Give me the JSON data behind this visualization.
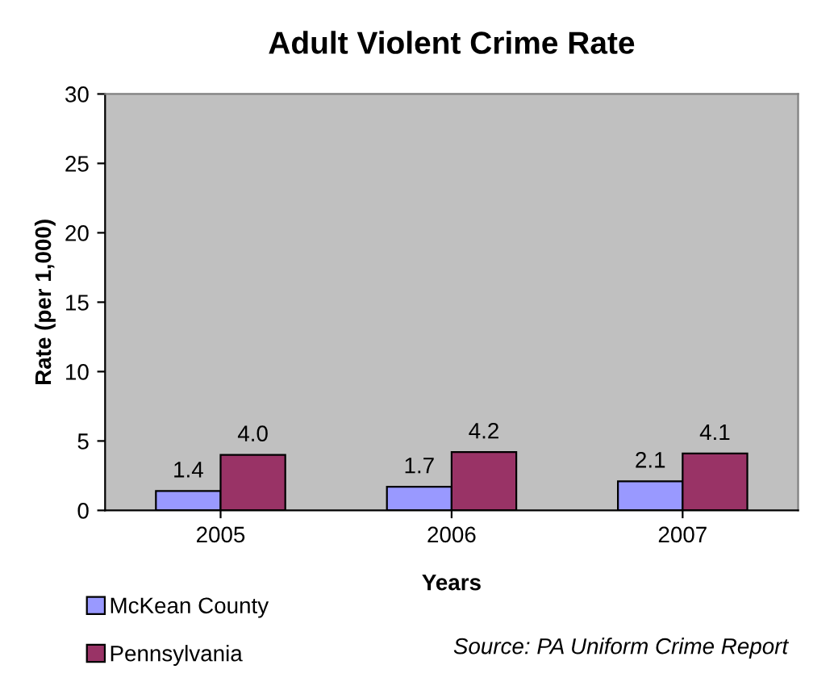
{
  "chart_data": {
    "type": "bar",
    "title": "Adult Violent Crime Rate",
    "xlabel": "Years",
    "ylabel": "Rate (per 1,000)",
    "categories": [
      "2005",
      "2006",
      "2007"
    ],
    "series": [
      {
        "name": "McKean County",
        "color": "#9999ff",
        "values": [
          1.4,
          1.7,
          2.1
        ],
        "value_labels": [
          "1.4",
          "1.7",
          "2.1"
        ]
      },
      {
        "name": "Pennsylvania",
        "color": "#993366",
        "values": [
          4.0,
          4.2,
          4.1
        ],
        "value_labels": [
          "4.0",
          "4.2",
          "4.1"
        ]
      }
    ],
    "ylim": [
      0,
      30
    ],
    "yticks": [
      0,
      5,
      10,
      15,
      20,
      25,
      30
    ],
    "grid": false,
    "legend": "bottom left",
    "annotations": [
      "Source: PA Uniform Crime Report"
    ]
  }
}
